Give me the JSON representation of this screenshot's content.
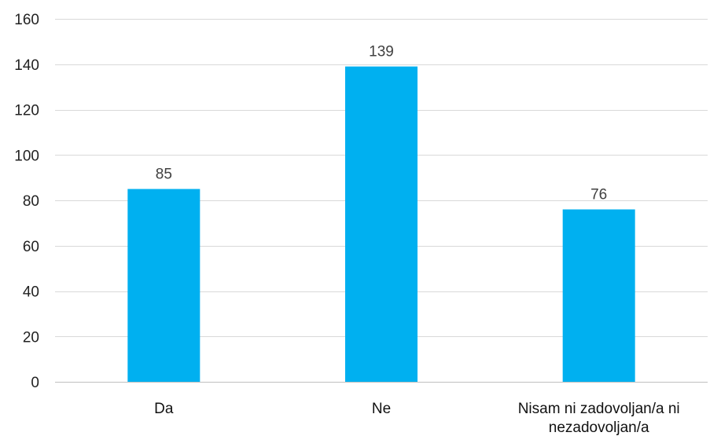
{
  "chart_data": {
    "type": "bar",
    "categories": [
      "Da",
      "Ne",
      "Nisam ni zadovoljan/a ni nezadovoljan/a"
    ],
    "category_label_lines": [
      [
        "Da"
      ],
      [
        "Ne"
      ],
      [
        "Nisam ni zadovoljan/a ni",
        "nezadovoljan/a"
      ]
    ],
    "values": [
      85,
      139,
      76
    ],
    "data_labels": [
      "85",
      "139",
      "76"
    ],
    "ylim": [
      0,
      160
    ],
    "yticks": [
      0,
      20,
      40,
      60,
      80,
      100,
      120,
      140,
      160
    ],
    "grid": true,
    "legend": false,
    "bar_color": "#00b0f0",
    "title": "",
    "xlabel": "",
    "ylabel": ""
  }
}
